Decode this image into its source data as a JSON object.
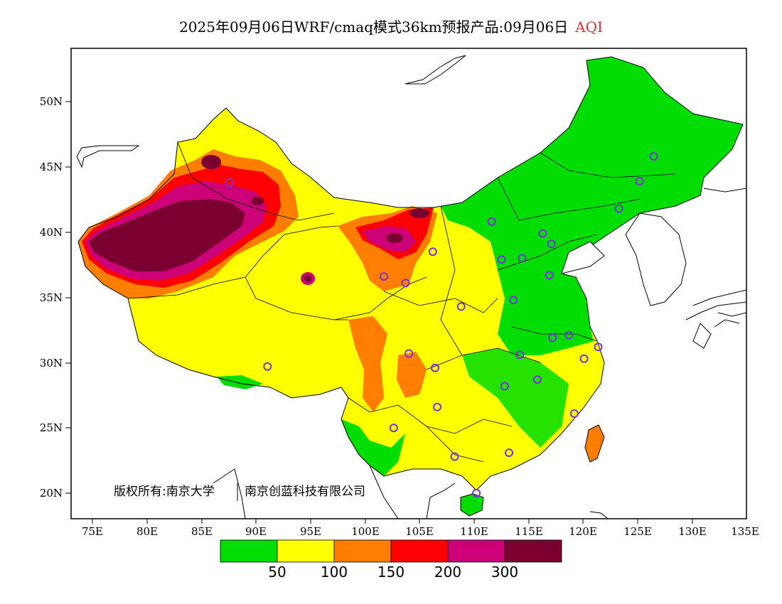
{
  "title": {
    "main": "2025年09月06日WRF/cmaq模式36km预报产品:09月06日",
    "pollutant": "AQI"
  },
  "axes": {
    "lat_ticks": [
      "50N",
      "45N",
      "40N",
      "35N",
      "30N",
      "25N",
      "20N"
    ],
    "lon_ticks": [
      "75E",
      "80E",
      "85E",
      "90E",
      "95E",
      "100E",
      "105E",
      "110E",
      "115E",
      "120E",
      "125E",
      "130E",
      "135E"
    ]
  },
  "copyright": {
    "owner1": "版权所有:南京大学",
    "owner2": "南京创蓝科技有限公司"
  },
  "legend": {
    "colors": [
      "#00dd00",
      "#ffff00",
      "#ff7e00",
      "#ff0000",
      "#cc0077",
      "#7a0030"
    ],
    "labels": [
      "50",
      "100",
      "150",
      "200",
      "300"
    ]
  },
  "stations": [
    [
      87.6,
      43.8
    ],
    [
      91.1,
      29.7
    ],
    [
      101.8,
      36.6
    ],
    [
      103.8,
      36.1
    ],
    [
      106.3,
      38.5
    ],
    [
      104.1,
      30.7
    ],
    [
      106.5,
      29.6
    ],
    [
      106.7,
      26.6
    ],
    [
      102.7,
      25.0
    ],
    [
      108.3,
      22.8
    ],
    [
      110.3,
      20.0
    ],
    [
      113.3,
      23.1
    ],
    [
      112.9,
      28.2
    ],
    [
      114.3,
      30.6
    ],
    [
      115.9,
      28.7
    ],
    [
      117.3,
      31.9
    ],
    [
      118.8,
      32.1
    ],
    [
      119.3,
      26.1
    ],
    [
      120.2,
      30.3
    ],
    [
      121.5,
      31.2
    ],
    [
      108.9,
      34.3
    ],
    [
      113.7,
      34.8
    ],
    [
      117.0,
      36.7
    ],
    [
      114.5,
      38.0
    ],
    [
      112.6,
      37.9
    ],
    [
      117.2,
      39.1
    ],
    [
      116.4,
      39.9
    ],
    [
      111.7,
      40.8
    ],
    [
      123.4,
      41.8
    ],
    [
      125.3,
      43.9
    ],
    [
      126.6,
      45.8
    ]
  ]
}
